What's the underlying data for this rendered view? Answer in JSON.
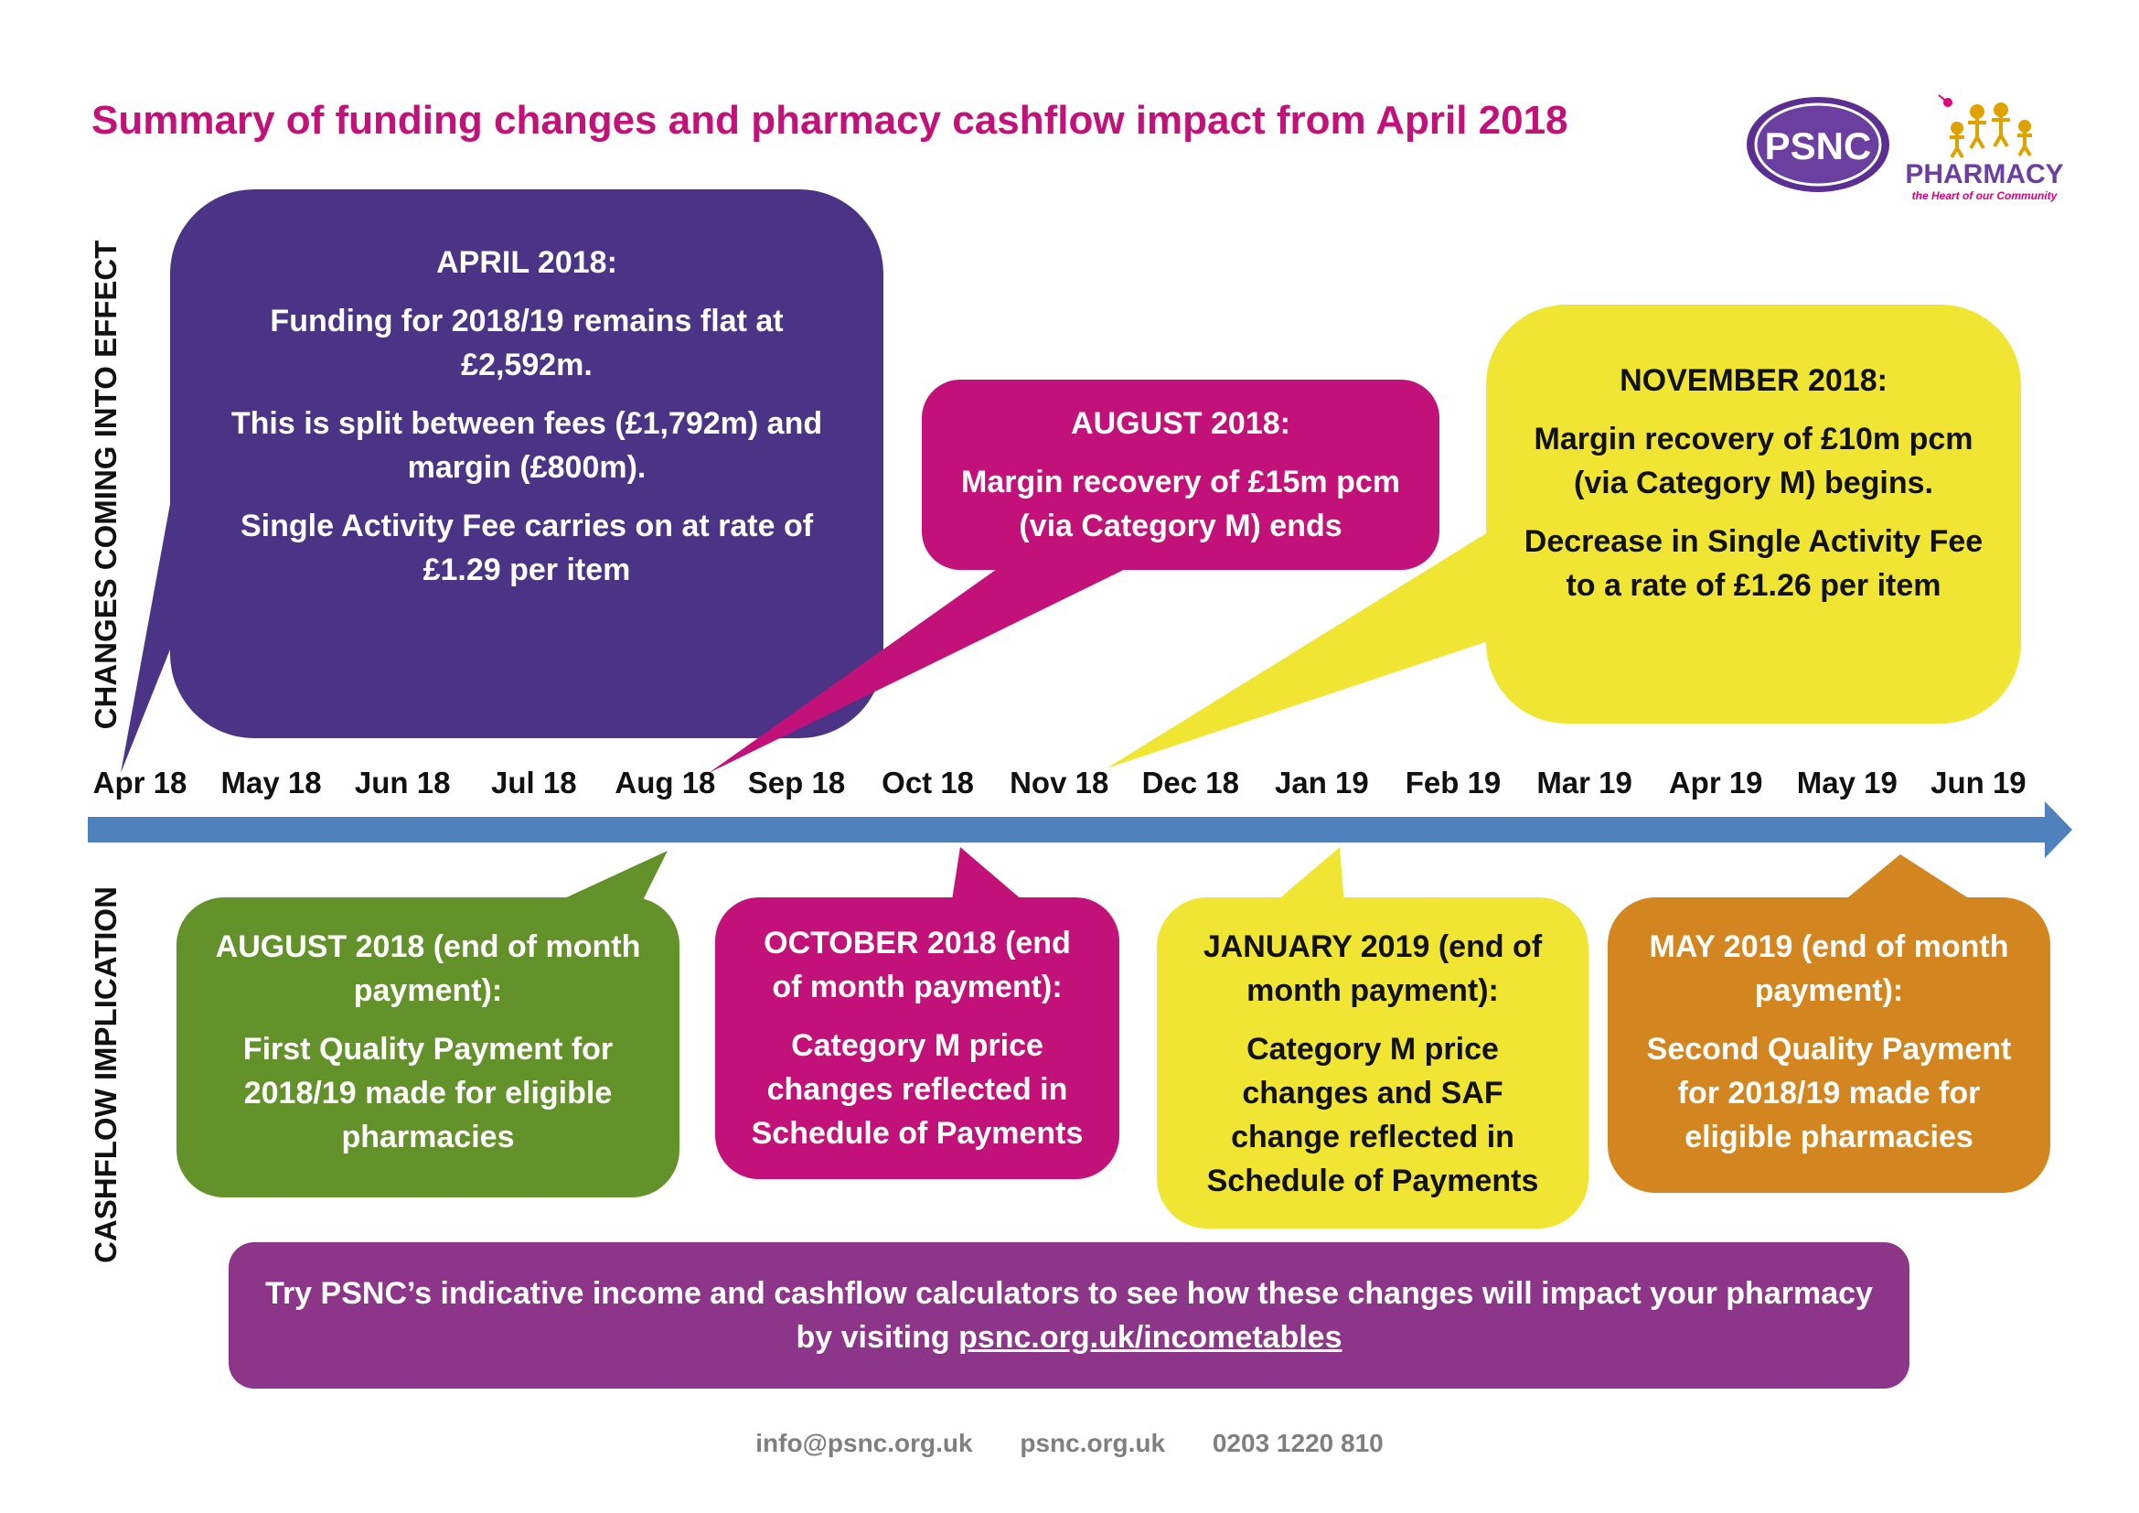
{
  "title": "Summary of funding changes and pharmacy cashflow impact from April 2018",
  "logo": {
    "psnc": "PSNC",
    "pharmacy": "PHARMACY",
    "tagline": "the Heart of our Community"
  },
  "colors": {
    "title": "#c3117a",
    "purple": "#4b3486",
    "magenta": "#c3117a",
    "yellow": "#efe532",
    "green": "#63922b",
    "orange": "#d3861f",
    "cta": "#8d3589",
    "arrow": "#4f81bd",
    "logo_purple": "#6b3fa0",
    "logo_pink": "#e2007a"
  },
  "labels": {
    "top": "CHANGES COMING INTO EFFECT",
    "bottom": "CASHFLOW IMPLICATION"
  },
  "months": [
    "Apr 18",
    "May 18",
    "Jun 18",
    "Jul 18",
    "Aug 18",
    "Sep 18",
    "Oct 18",
    "Nov 18",
    "Dec 18",
    "Jan 19",
    "Feb 19",
    "Mar 19",
    "Apr 19",
    "May 19",
    "Jun 19"
  ],
  "top_boxes": [
    {
      "paragraphs": [
        [
          "APRIL 2018:"
        ],
        [
          "Funding for 2018/19 remains flat at",
          "£2,592m."
        ],
        [
          "This is split between fees (£1,792m) and",
          "margin (£800m)."
        ],
        [
          "Single Activity Fee carries on at rate of",
          "£1.29 per item"
        ]
      ]
    },
    {
      "paragraphs": [
        [
          "AUGUST 2018:"
        ],
        [
          "Margin recovery of £15m pcm",
          "(via Category M) ends"
        ]
      ]
    },
    {
      "paragraphs": [
        [
          "NOVEMBER 2018:"
        ],
        [
          "Margin recovery of £10m pcm",
          "(via Category M) begins."
        ],
        [
          "Decrease in Single Activity Fee",
          "to a rate of £1.26 per item"
        ]
      ]
    }
  ],
  "bottom_boxes": [
    {
      "paragraphs": [
        [
          "AUGUST 2018 (end of month",
          "payment):"
        ],
        [
          "First Quality Payment for",
          "2018/19 made for eligible",
          "pharmacies"
        ]
      ]
    },
    {
      "paragraphs": [
        [
          "OCTOBER 2018 (end",
          "of month payment):"
        ],
        [
          "Category M price",
          "changes reflected in",
          "Schedule of Payments"
        ]
      ]
    },
    {
      "paragraphs": [
        [
          "JANUARY 2019 (end of",
          "month payment):"
        ],
        [
          "Category M price",
          "changes and SAF",
          "change reflected in",
          "Schedule of Payments"
        ]
      ]
    },
    {
      "paragraphs": [
        [
          "MAY 2019 (end of month",
          "payment):"
        ],
        [
          "Second Quality Payment",
          "for 2018/19 made for",
          "eligible pharmacies"
        ]
      ]
    }
  ],
  "cta": {
    "line1": "Try PSNC’s indicative income and cashflow calculators to see how these changes will impact your pharmacy",
    "line2_prefix": "by visiting ",
    "link": "psnc.org.uk/incometables"
  },
  "contact": {
    "email": "info@psnc.org.uk",
    "web": "psnc.org.uk",
    "phone": "0203 1220 810"
  }
}
